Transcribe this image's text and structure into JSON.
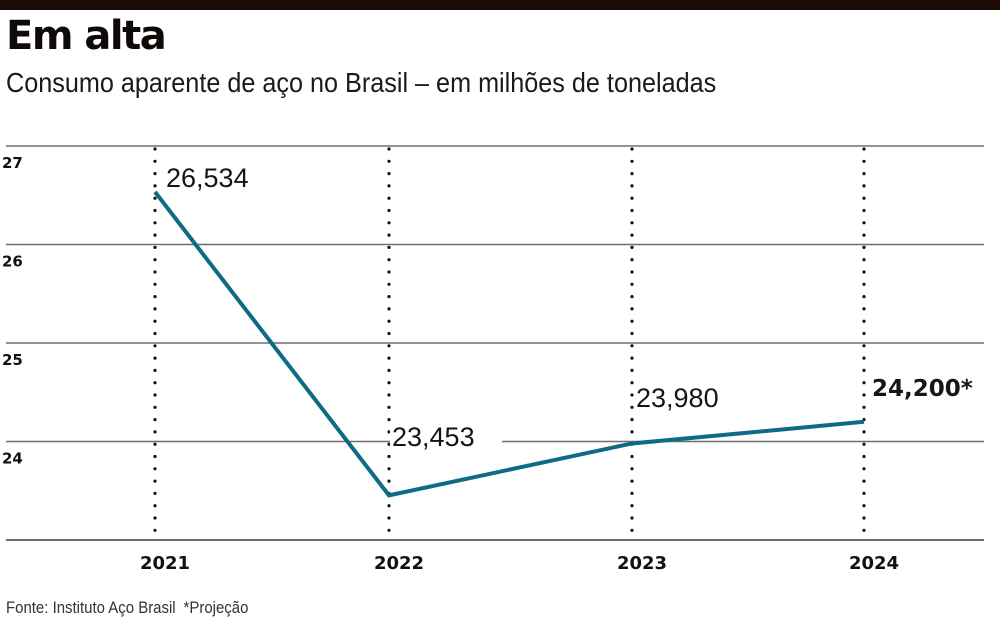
{
  "header": {
    "title": "Em alta",
    "subtitle": "Consumo aparente de aço no Brasil – em milhões de toneladas"
  },
  "footer": {
    "source": "Fonte: Instituto Aço Brasil",
    "note": "*Projeção"
  },
  "colors": {
    "line": "#0f6b85",
    "grid": "#6e6e6e",
    "topbar": "#1c0b05"
  },
  "chart_data": {
    "type": "line",
    "title": "Em alta",
    "subtitle": "Consumo aparente de aço no Brasil – em milhões de toneladas",
    "xlabel": "",
    "ylabel": "",
    "categories": [
      "2021",
      "2022",
      "2023",
      "2024"
    ],
    "series": [
      {
        "name": "Consumo aparente de aço",
        "values": [
          26.534,
          23.453,
          23.98,
          24.2
        ],
        "labels": [
          "26,534",
          "23,453",
          "23,980",
          "24,200*"
        ]
      }
    ],
    "yticks": [
      27,
      26,
      25,
      24
    ],
    "ylim": [
      23,
      27
    ],
    "grid": true,
    "legend": "none",
    "annotations": [
      "*Projeção"
    ]
  }
}
